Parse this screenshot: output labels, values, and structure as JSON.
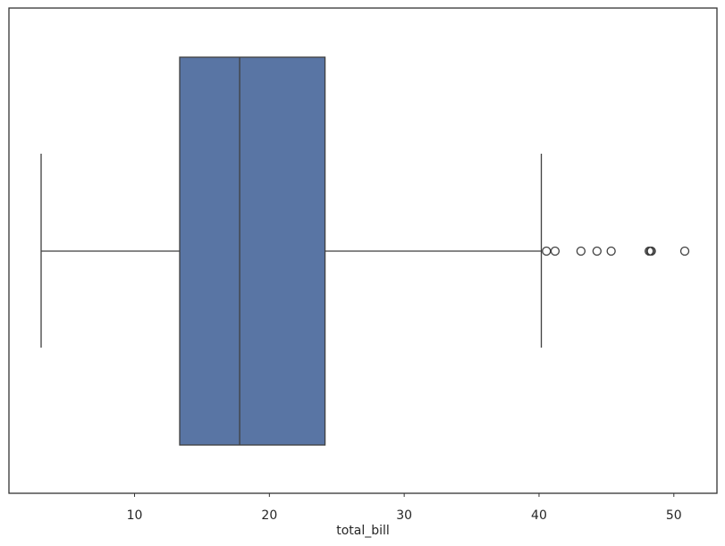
{
  "chart_data": {
    "type": "box",
    "xlabel": "total_bill",
    "box": {
      "whislo": 3.07,
      "q1": 13.3475,
      "med": 17.795,
      "q3": 24.1275,
      "whishi": 40.17,
      "fliers": [
        40.55,
        41.19,
        43.11,
        44.3,
        45.35,
        48.17,
        48.27,
        48.33,
        50.81
      ]
    },
    "color": "#5975a4",
    "line_color": "#3f3f3f",
    "xlim": [
      0.683,
      53.197
    ],
    "xticks": [
      10,
      20,
      30,
      40,
      50
    ],
    "grid": false
  }
}
